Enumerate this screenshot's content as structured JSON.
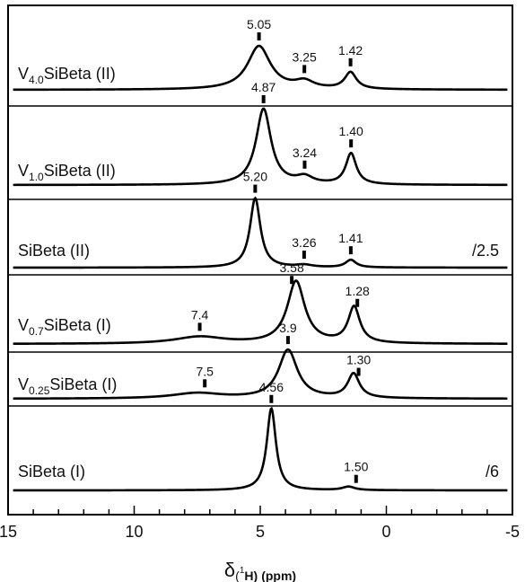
{
  "chart_data": {
    "type": "line",
    "xlabel": "δ(¹H) (ppm)",
    "xlim": [
      15,
      -5
    ],
    "xticks": [
      "15",
      "10",
      "5",
      "0",
      "-5"
    ],
    "grid": false,
    "legend": "none",
    "series": [
      {
        "name": "V4.0SiBeta (II)",
        "label_main": "V",
        "label_sub": "4.0",
        "label_rest": "SiBeta (II)",
        "scale_note": "",
        "peaks": [
          {
            "pos": 5.05,
            "height": 0.78,
            "width": 0.55
          },
          {
            "pos": 3.25,
            "height": 0.13,
            "width": 0.45
          },
          {
            "pos": 1.42,
            "height": 0.3,
            "width": 0.28
          }
        ],
        "annotations": [
          {
            "text": "5.05",
            "pos": 5.05
          },
          {
            "text": "3.25",
            "pos": 3.25
          },
          {
            "text": "1.42",
            "pos": 1.42
          }
        ]
      },
      {
        "name": "V1.0SiBeta (II)",
        "label_main": "V",
        "label_sub": "1.0",
        "label_rest": "SiBeta (II)",
        "scale_note": "",
        "peaks": [
          {
            "pos": 4.87,
            "height": 0.88,
            "width": 0.36
          },
          {
            "pos": 3.24,
            "height": 0.08,
            "width": 0.4
          },
          {
            "pos": 1.4,
            "height": 0.36,
            "width": 0.25
          }
        ],
        "annotations": [
          {
            "text": "4.87",
            "pos": 4.87
          },
          {
            "text": "3.24",
            "pos": 3.24
          },
          {
            "text": "1.40",
            "pos": 1.4
          }
        ]
      },
      {
        "name": "SiBeta (II)",
        "label_main": "SiBeta (II)",
        "label_sub": "",
        "label_rest": "",
        "scale_note": "/2.5",
        "peaks": [
          {
            "pos": 5.2,
            "height": 0.92,
            "width": 0.25
          },
          {
            "pos": 3.26,
            "height": 0.03,
            "width": 0.4
          },
          {
            "pos": 1.41,
            "height": 0.1,
            "width": 0.25
          }
        ],
        "annotations": [
          {
            "text": "5.20",
            "pos": 5.2
          },
          {
            "text": "3.26",
            "pos": 3.26
          },
          {
            "text": "1.41",
            "pos": 1.41
          }
        ]
      },
      {
        "name": "V0.7SiBeta (I)",
        "label_main": "V",
        "label_sub": "0.7",
        "label_rest": "SiBeta (I)",
        "scale_note": "",
        "peaks": [
          {
            "pos": 7.4,
            "height": 0.1,
            "width": 1.2
          },
          {
            "pos": 3.58,
            "height": 0.9,
            "width": 0.42
          },
          {
            "pos": 1.28,
            "height": 0.52,
            "width": 0.28
          }
        ],
        "annotations": [
          {
            "text": "7.4",
            "pos": 7.4
          },
          {
            "text": "3.58",
            "pos": 3.75
          },
          {
            "text": "1.28",
            "pos": 1.15
          }
        ]
      },
      {
        "name": "V0.25SiBeta (I)",
        "label_main": "V",
        "label_sub": "0.25",
        "label_rest": "SiBeta (I)",
        "scale_note": "",
        "peaks": [
          {
            "pos": 7.5,
            "height": 0.1,
            "width": 1.2
          },
          {
            "pos": 3.9,
            "height": 0.9,
            "width": 0.45
          },
          {
            "pos": 1.3,
            "height": 0.45,
            "width": 0.28
          }
        ],
        "annotations": [
          {
            "text": "7.5",
            "pos": 7.2
          },
          {
            "text": "3.9",
            "pos": 3.9
          },
          {
            "text": "1.30",
            "pos": 1.1
          }
        ]
      },
      {
        "name": "SiBeta (I)",
        "label_main": "SiBeta (I)",
        "label_sub": "",
        "label_rest": "",
        "scale_note": "/6",
        "peaks": [
          {
            "pos": 4.56,
            "height": 0.95,
            "width": 0.22
          },
          {
            "pos": 1.5,
            "height": 0.04,
            "width": 0.3
          }
        ],
        "annotations": [
          {
            "text": "4.56",
            "pos": 4.56
          },
          {
            "text": "1.50",
            "pos": 1.2
          }
        ]
      }
    ]
  }
}
